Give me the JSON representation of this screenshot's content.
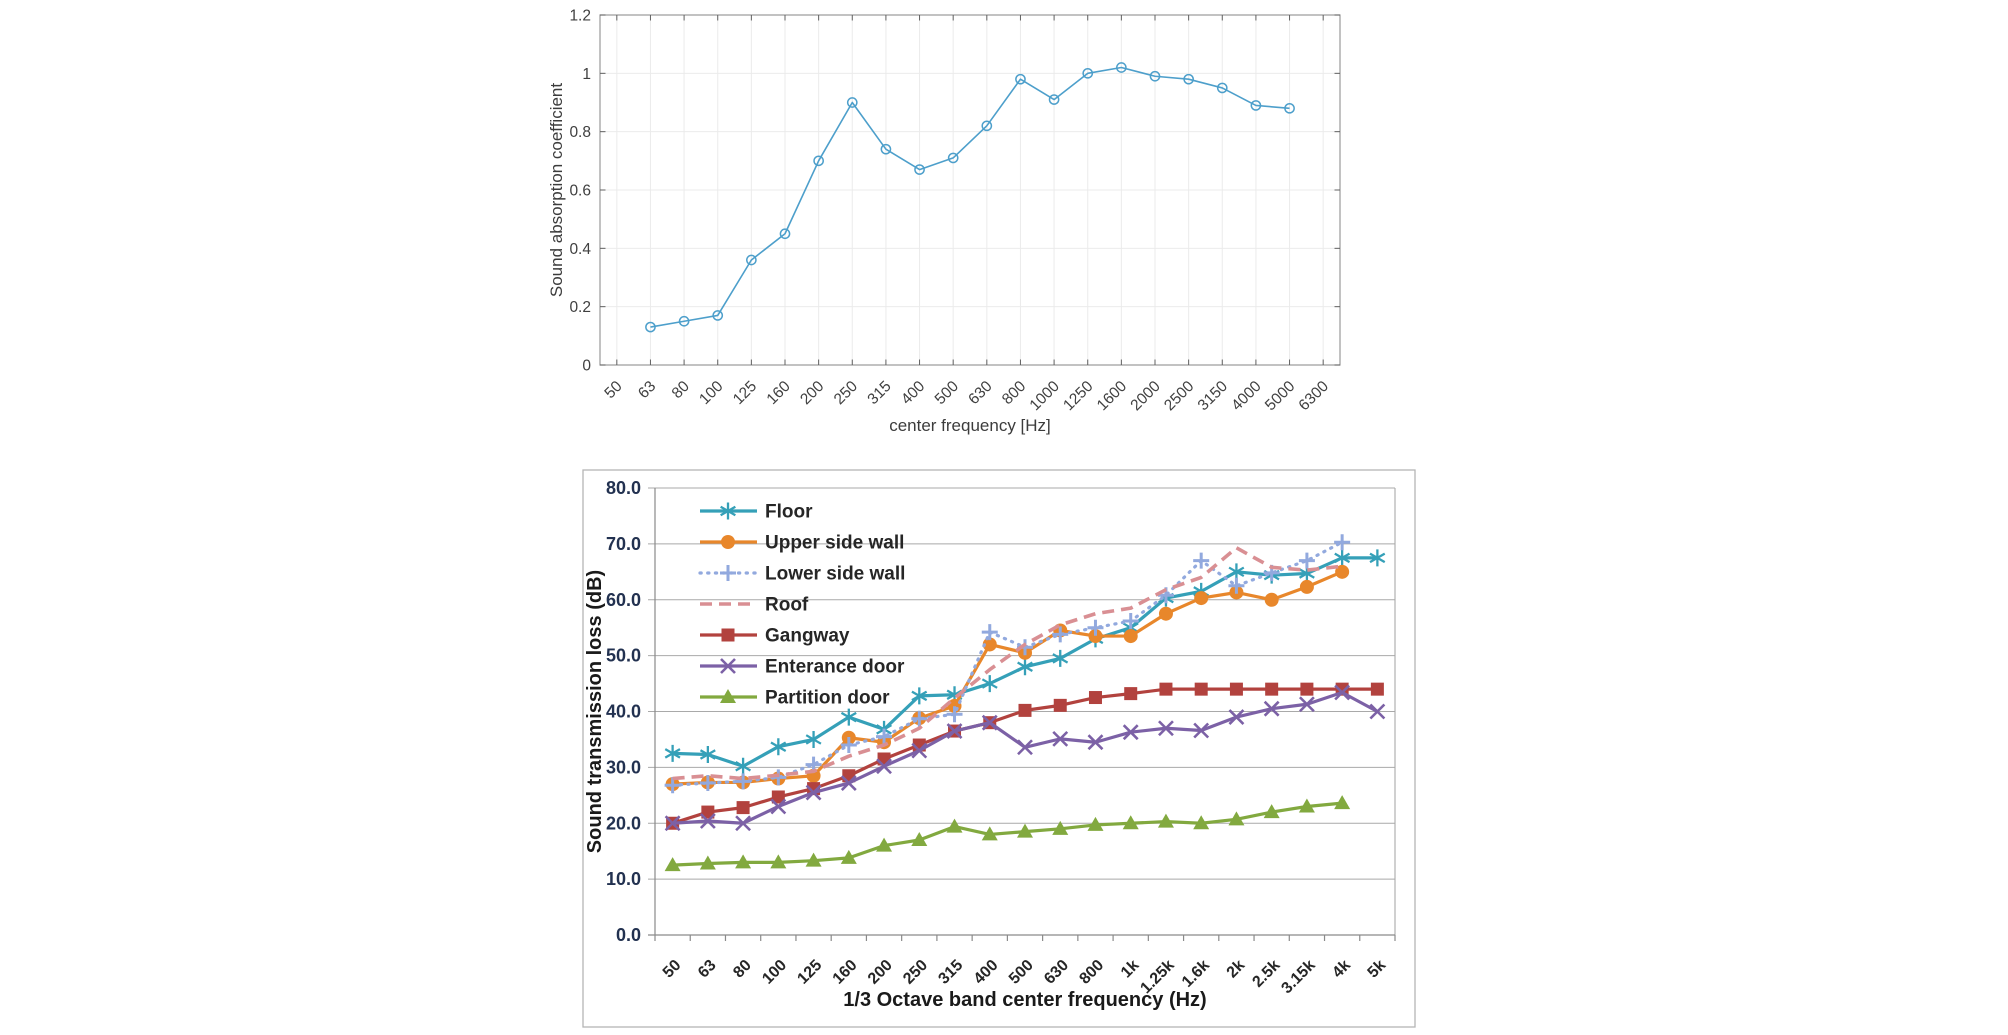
{
  "page": {
    "background": "#ffffff"
  },
  "chart_data": [
    {
      "id": "absorption",
      "type": "line",
      "title": "",
      "xlabel": "center frequency [Hz]",
      "ylabel": "Sound absorption coefficient",
      "ylim": [
        0,
        1.2
      ],
      "yticks": [
        0,
        0.2,
        0.4,
        0.6,
        0.8,
        1,
        1.2
      ],
      "ytick_labels": [
        "0",
        "0.2",
        "0.4",
        "0.6",
        "0.8",
        "1",
        "1.2"
      ],
      "categories": [
        "50",
        "63",
        "80",
        "100",
        "125",
        "160",
        "200",
        "250",
        "315",
        "400",
        "500",
        "630",
        "800",
        "1000",
        "1250",
        "1600",
        "2000",
        "2500",
        "3150",
        "4000",
        "5000",
        "6300"
      ],
      "grid": true,
      "legend_position": "none",
      "series": [
        {
          "name": "sound absorption coefficient",
          "color": "#4D9FCB",
          "marker": "circle-open",
          "line": "solid",
          "values": [
            null,
            0.13,
            0.15,
            0.17,
            0.36,
            0.45,
            0.7,
            0.9,
            0.74,
            0.67,
            0.71,
            0.82,
            0.98,
            0.91,
            1.0,
            1.02,
            0.99,
            0.98,
            0.95,
            0.89,
            0.88,
            null
          ]
        }
      ]
    },
    {
      "id": "transmission-loss",
      "type": "line",
      "title": "",
      "xlabel": "1/3 Octave band center frequency (Hz)",
      "ylabel": "Sound transmission loss (dB)",
      "ylim": [
        0,
        80
      ],
      "yticks": [
        0,
        10,
        20,
        30,
        40,
        50,
        60,
        70,
        80
      ],
      "ytick_labels": [
        "0.0",
        "10.0",
        "20.0",
        "30.0",
        "40.0",
        "50.0",
        "60.0",
        "70.0",
        "80.0"
      ],
      "categories": [
        "50",
        "63",
        "80",
        "100",
        "125",
        "160",
        "200",
        "250",
        "315",
        "400",
        "500",
        "630",
        "800",
        "1k",
        "1.25k",
        "1.6k",
        "2k",
        "2.5k",
        "3.15k",
        "4k",
        "5k"
      ],
      "grid": true,
      "legend_position": "top-left",
      "series": [
        {
          "name": "Floor",
          "color": "#35A0B8",
          "marker": "asterisk",
          "line": "solid",
          "values": [
            32.5,
            32.3,
            30.2,
            33.7,
            35,
            39,
            36.8,
            42.8,
            43,
            45,
            48,
            49.5,
            53,
            55,
            60.3,
            61.5,
            65,
            64.4,
            64.7,
            67.5,
            67.5
          ]
        },
        {
          "name": "Upper side wall",
          "color": "#E8872B",
          "marker": "circle",
          "line": "solid",
          "values": [
            27,
            27.3,
            27.3,
            28,
            28.5,
            35.3,
            34.5,
            38.8,
            41,
            52,
            50.5,
            54.5,
            53.5,
            53.5,
            57.5,
            60.3,
            61.3,
            60,
            62.3,
            65,
            null
          ]
        },
        {
          "name": "Lower side wall",
          "color": "#92A9DE",
          "marker": "plus",
          "line": "dotted",
          "values": [
            26.8,
            27.2,
            27.5,
            28.2,
            30.5,
            34,
            35.5,
            38.7,
            39.5,
            54.2,
            51.5,
            53.8,
            55,
            56.2,
            60.8,
            67,
            62.5,
            64.8,
            67,
            70.3,
            null
          ]
        },
        {
          "name": "Roof",
          "color": "#D98F93",
          "marker": "none",
          "line": "dashed",
          "values": [
            28,
            28.5,
            28,
            28.6,
            29.3,
            32,
            34,
            37,
            42.4,
            47.5,
            52,
            55.5,
            57.5,
            58.5,
            61.8,
            64,
            69.3,
            65.8,
            65.3,
            66,
            null
          ]
        },
        {
          "name": "Gangway",
          "color": "#B2423E",
          "marker": "square",
          "line": "solid",
          "values": [
            20,
            22,
            22.8,
            24.7,
            26.2,
            28.5,
            31.5,
            34,
            36.5,
            38,
            40.2,
            41.1,
            42.5,
            43.2,
            44,
            44,
            44,
            44,
            44,
            44,
            44
          ]
        },
        {
          "name": "Enterance door",
          "color": "#7C61A6",
          "marker": "x",
          "line": "solid",
          "values": [
            20,
            20.4,
            20,
            23,
            25.5,
            27.2,
            30.2,
            33,
            36.5,
            38,
            33.6,
            35.1,
            34.5,
            36.3,
            37,
            36.6,
            39,
            40.5,
            41.3,
            43.4,
            40
          ]
        },
        {
          "name": "Partition door",
          "color": "#82A93F",
          "marker": "triangle",
          "line": "solid",
          "values": [
            12.5,
            12.8,
            13,
            13,
            13.3,
            13.8,
            16,
            17,
            19.4,
            18,
            18.5,
            19,
            19.7,
            20,
            20.3,
            20,
            20.7,
            22,
            23,
            23.6,
            null
          ]
        }
      ]
    }
  ]
}
